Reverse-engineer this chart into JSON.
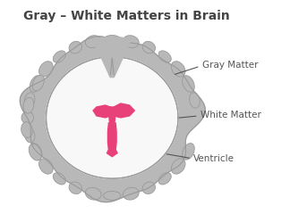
{
  "title": "Gray – White Matters in Brain",
  "title_fontsize": 10,
  "title_color": "#444444",
  "bg_color": "#ffffff",
  "gray_color": "#b8b8b8",
  "gray_outline": "#999999",
  "white_color": "#f8f8f8",
  "ventricle_color": "#e8417a",
  "label_gray": "Gray Matter",
  "label_white": "White Matter",
  "label_ventricle": "Ventricle",
  "label_fontsize": 7.5,
  "label_color": "#555555",
  "line_color": "#555555"
}
